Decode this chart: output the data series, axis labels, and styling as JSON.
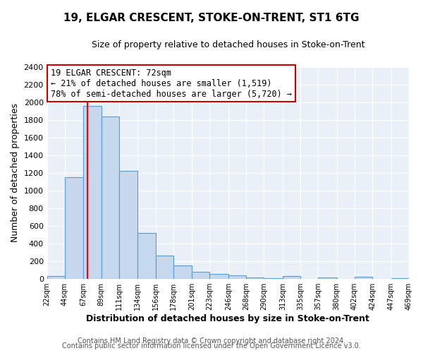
{
  "title": "19, ELGAR CRESCENT, STOKE-ON-TRENT, ST1 6TG",
  "subtitle": "Size of property relative to detached houses in Stoke-on-Trent",
  "bar_edges": [
    22,
    44,
    67,
    89,
    111,
    134,
    156,
    178,
    201,
    223,
    246,
    268,
    290,
    313,
    335,
    357,
    380,
    402,
    424,
    447,
    469
  ],
  "bar_heights": [
    30,
    1150,
    1960,
    1840,
    1220,
    520,
    265,
    148,
    80,
    50,
    40,
    12,
    5,
    30,
    0,
    15,
    0,
    18,
    0,
    8
  ],
  "bar_color": "#c5d8ed",
  "bar_edge_color": "#5b9bd5",
  "vline_x": 72,
  "vline_color": "red",
  "xlabel": "Distribution of detached houses by size in Stoke-on-Trent",
  "ylabel": "Number of detached properties",
  "ylim": [
    0,
    2400
  ],
  "yticks": [
    0,
    200,
    400,
    600,
    800,
    1000,
    1200,
    1400,
    1600,
    1800,
    2000,
    2200,
    2400
  ],
  "xtick_labels": [
    "22sqm",
    "44sqm",
    "67sqm",
    "89sqm",
    "111sqm",
    "134sqm",
    "156sqm",
    "178sqm",
    "201sqm",
    "223sqm",
    "246sqm",
    "268sqm",
    "290sqm",
    "313sqm",
    "335sqm",
    "357sqm",
    "380sqm",
    "402sqm",
    "424sqm",
    "447sqm",
    "469sqm"
  ],
  "annotation_title": "19 ELGAR CRESCENT: 72sqm",
  "annotation_line1": "← 21% of detached houses are smaller (1,519)",
  "annotation_line2": "78% of semi-detached houses are larger (5,720) →",
  "bg_color": "#eaf0f8",
  "footer1": "Contains HM Land Registry data © Crown copyright and database right 2024.",
  "footer2": "Contains public sector information licensed under the Open Government Licence v3.0.",
  "title_fontsize": 11,
  "subtitle_fontsize": 9,
  "xlabel_fontsize": 9,
  "ylabel_fontsize": 9,
  "ann_fontsize": 8.5,
  "footer_fontsize": 7
}
